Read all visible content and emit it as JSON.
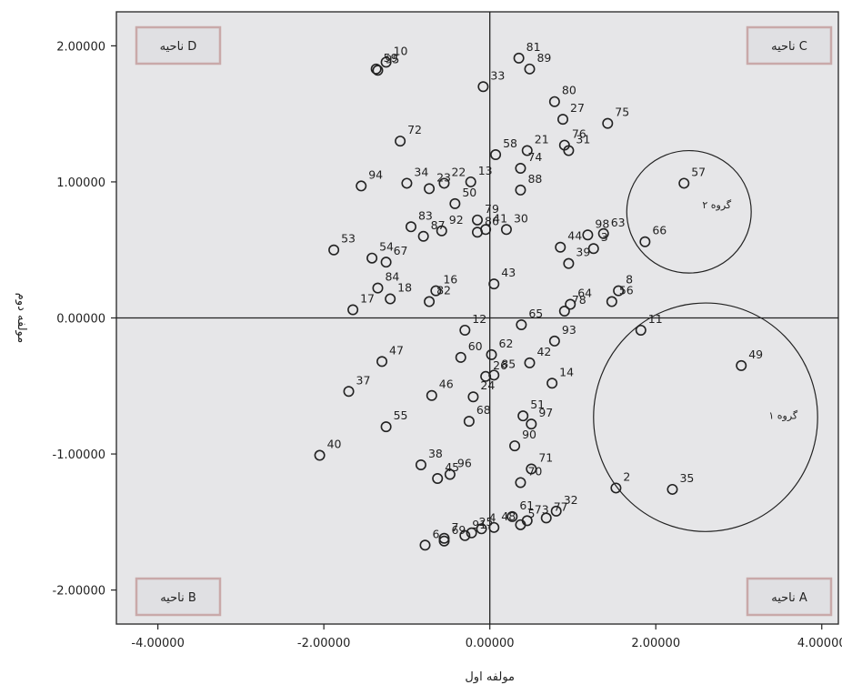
{
  "chart_data": {
    "type": "scatter",
    "title": "",
    "xlabel": "مولفه اول",
    "ylabel": "مولفه دوم",
    "xlim": [
      -4.5,
      4.2
    ],
    "ylim": [
      -2.25,
      2.25
    ],
    "xticks": [
      -4,
      -2,
      0,
      2,
      4
    ],
    "yticks": [
      -2,
      -1,
      0,
      1,
      2
    ],
    "xtick_labels": [
      "-4.00000",
      "-2.00000",
      "0.00000",
      "2.00000",
      "4.00000"
    ],
    "ytick_labels": [
      "-2.00000",
      "-1.00000",
      "0.00000",
      "1.00000",
      "2.00000"
    ],
    "reference_lines": {
      "x": 0,
      "y": 0
    },
    "regions": [
      {
        "label": "ناحیه D",
        "position": "top-left"
      },
      {
        "label": "ناحیه C",
        "position": "top-right"
      },
      {
        "label": "ناحیه B",
        "position": "bottom-left"
      },
      {
        "label": "ناحیه A",
        "position": "bottom-right"
      }
    ],
    "groups": [
      {
        "label": "گروه ۲",
        "cx": 2.4,
        "cy": 0.78,
        "rx": 0.75,
        "ry": 0.45
      },
      {
        "label": "گروه ۱",
        "cx": 2.6,
        "cy": -0.73,
        "rx": 1.35,
        "ry": 0.84
      }
    ],
    "points": [
      {
        "id": "10",
        "x": -1.25,
        "y": 1.88
      },
      {
        "id": "95",
        "x": -1.35,
        "y": 1.82
      },
      {
        "id": "59",
        "x": -1.37,
        "y": 1.83
      },
      {
        "id": "81",
        "x": 0.35,
        "y": 1.91
      },
      {
        "id": "89",
        "x": 0.48,
        "y": 1.83
      },
      {
        "id": "33",
        "x": -0.08,
        "y": 1.7
      },
      {
        "id": "80",
        "x": 0.78,
        "y": 1.59
      },
      {
        "id": "27",
        "x": 0.88,
        "y": 1.46
      },
      {
        "id": "75",
        "x": 1.42,
        "y": 1.43
      },
      {
        "id": "76",
        "x": 0.9,
        "y": 1.27
      },
      {
        "id": "72",
        "x": -1.08,
        "y": 1.3
      },
      {
        "id": "58",
        "x": 0.07,
        "y": 1.2
      },
      {
        "id": "21",
        "x": 0.45,
        "y": 1.23
      },
      {
        "id": "31",
        "x": 0.95,
        "y": 1.23
      },
      {
        "id": "74",
        "x": 0.37,
        "y": 1.1
      },
      {
        "id": "13",
        "x": -0.23,
        "y": 1.0
      },
      {
        "id": "22",
        "x": -0.55,
        "y": 0.99
      },
      {
        "id": "34",
        "x": -1.0,
        "y": 0.99
      },
      {
        "id": "94",
        "x": -1.55,
        "y": 0.97
      },
      {
        "id": "88",
        "x": 0.37,
        "y": 0.94
      },
      {
        "id": "57",
        "x": 2.34,
        "y": 0.99
      },
      {
        "id": "23",
        "x": -0.73,
        "y": 0.95
      },
      {
        "id": "50",
        "x": -0.42,
        "y": 0.84
      },
      {
        "id": "79",
        "x": -0.15,
        "y": 0.72
      },
      {
        "id": "30",
        "x": 0.2,
        "y": 0.65
      },
      {
        "id": "63",
        "x": 1.37,
        "y": 0.62
      },
      {
        "id": "66",
        "x": 1.87,
        "y": 0.56
      },
      {
        "id": "98",
        "x": 1.18,
        "y": 0.61
      },
      {
        "id": "53",
        "x": -1.88,
        "y": 0.5
      },
      {
        "id": "54",
        "x": -1.42,
        "y": 0.44
      },
      {
        "id": "83",
        "x": -0.95,
        "y": 0.67
      },
      {
        "id": "86",
        "x": -0.15,
        "y": 0.63
      },
      {
        "id": "41",
        "x": -0.05,
        "y": 0.65
      },
      {
        "id": "44",
        "x": 0.85,
        "y": 0.52
      },
      {
        "id": "3",
        "x": 1.25,
        "y": 0.51
      },
      {
        "id": "87",
        "x": -0.8,
        "y": 0.6
      },
      {
        "id": "67",
        "x": -1.25,
        "y": 0.41
      },
      {
        "id": "39",
        "x": 0.95,
        "y": 0.4
      },
      {
        "id": "8",
        "x": 1.55,
        "y": 0.2
      },
      {
        "id": "92",
        "x": -0.58,
        "y": 0.64
      },
      {
        "id": "43",
        "x": 0.05,
        "y": 0.25
      },
      {
        "id": "17",
        "x": -1.65,
        "y": 0.06
      },
      {
        "id": "84",
        "x": -1.35,
        "y": 0.22
      },
      {
        "id": "56",
        "x": 1.47,
        "y": 0.12
      },
      {
        "id": "16",
        "x": -0.65,
        "y": 0.2
      },
      {
        "id": "64",
        "x": 0.97,
        "y": 0.1
      },
      {
        "id": "78",
        "x": 0.9,
        "y": 0.05
      },
      {
        "id": "18",
        "x": -1.2,
        "y": 0.14
      },
      {
        "id": "82",
        "x": -0.73,
        "y": 0.12
      },
      {
        "id": "12",
        "x": -0.3,
        "y": -0.09
      },
      {
        "id": "93",
        "x": 0.78,
        "y": -0.17
      },
      {
        "id": "11",
        "x": 1.82,
        "y": -0.09
      },
      {
        "id": "65",
        "x": 0.38,
        "y": -0.05
      },
      {
        "id": "47",
        "x": -1.3,
        "y": -0.32
      },
      {
        "id": "49",
        "x": 3.03,
        "y": -0.35
      },
      {
        "id": "60",
        "x": -0.35,
        "y": -0.29
      },
      {
        "id": "62",
        "x": 0.02,
        "y": -0.27
      },
      {
        "id": "42",
        "x": 0.48,
        "y": -0.33
      },
      {
        "id": "26",
        "x": -0.05,
        "y": -0.43
      },
      {
        "id": "37",
        "x": -1.7,
        "y": -0.54
      },
      {
        "id": "24",
        "x": -0.2,
        "y": -0.58
      },
      {
        "id": "85",
        "x": 0.05,
        "y": -0.42
      },
      {
        "id": "14",
        "x": 0.75,
        "y": -0.48
      },
      {
        "id": "97",
        "x": 0.5,
        "y": -0.78
      },
      {
        "id": "55",
        "x": -1.25,
        "y": -0.8
      },
      {
        "id": "46",
        "x": -0.7,
        "y": -0.57
      },
      {
        "id": "51",
        "x": 0.4,
        "y": -0.72
      },
      {
        "id": "68",
        "x": -0.25,
        "y": -0.76
      },
      {
        "id": "90",
        "x": 0.3,
        "y": -0.94
      },
      {
        "id": "71",
        "x": 0.5,
        "y": -1.11
      },
      {
        "id": "40",
        "x": -2.05,
        "y": -1.01
      },
      {
        "id": "38",
        "x": -0.83,
        "y": -1.08
      },
      {
        "id": "45",
        "x": -0.63,
        "y": -1.18
      },
      {
        "id": "70",
        "x": 0.37,
        "y": -1.21
      },
      {
        "id": "32",
        "x": 0.8,
        "y": -1.42
      },
      {
        "id": "2",
        "x": 1.52,
        "y": -1.25
      },
      {
        "id": "35",
        "x": 2.2,
        "y": -1.26
      },
      {
        "id": "96",
        "x": -0.48,
        "y": -1.15
      },
      {
        "id": "61",
        "x": 0.27,
        "y": -1.46
      },
      {
        "id": "73",
        "x": 0.45,
        "y": -1.49
      },
      {
        "id": "77",
        "x": 0.68,
        "y": -1.47
      },
      {
        "id": "69",
        "x": -0.55,
        "y": -1.64
      },
      {
        "id": "91",
        "x": -0.3,
        "y": -1.6
      },
      {
        "id": "4",
        "x": -0.1,
        "y": -1.55
      },
      {
        "id": "5",
        "x": 0.37,
        "y": -1.52
      },
      {
        "id": "48",
        "x": 0.05,
        "y": -1.54
      },
      {
        "id": "25",
        "x": -0.22,
        "y": -1.58
      },
      {
        "id": "6",
        "x": -0.78,
        "y": -1.67
      },
      {
        "id": "7",
        "x": -0.55,
        "y": -1.62
      }
    ]
  }
}
